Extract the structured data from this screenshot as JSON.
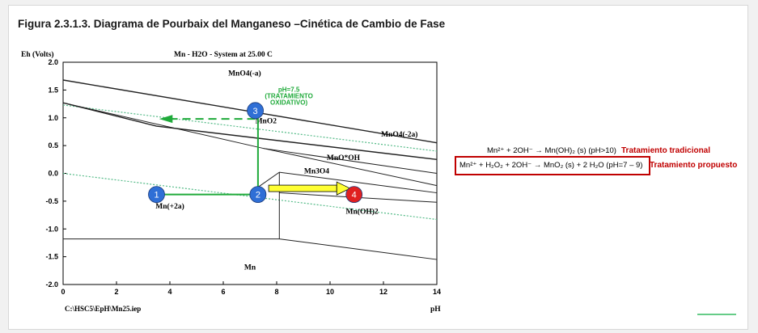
{
  "figure_title": "Figura 2.3.1.3. Diagrama de Pourbaix del Manganeso –Cinética de Cambio de Fase",
  "chart_data": {
    "type": "pourbaix",
    "title": "Mn - H2O - System at 25.00 C",
    "ylabel": "Eh (Volts)",
    "xlabel": "pH",
    "xlim": [
      0,
      14
    ],
    "ylim": [
      -2.0,
      2.0
    ],
    "x_ticks": [
      "0",
      "2",
      "4",
      "6",
      "8",
      "10",
      "12",
      "14"
    ],
    "y_ticks": [
      "2.0",
      "1.5",
      "1.0",
      "0.5",
      "0.0",
      "-0.5",
      "-1.0",
      "-1.5",
      "-2.0"
    ],
    "footer_left": "C:\\HSC5\\EpH\\Mn25.iep",
    "regions": [
      {
        "label": "MnO4(-a)",
        "x": 6.8,
        "y": 1.76
      },
      {
        "label": "MnO2",
        "x": 7.6,
        "y": 0.9
      },
      {
        "label": "MnO4(-2a)",
        "x": 12.6,
        "y": 0.66
      },
      {
        "label": "MnO*OH",
        "x": 10.5,
        "y": 0.24
      },
      {
        "label": "Mn3O4",
        "x": 9.5,
        "y": 0.0
      },
      {
        "label": "Mn(+2a)",
        "x": 4.0,
        "y": -0.63
      },
      {
        "label": "Mn(OH)2",
        "x": 11.2,
        "y": -0.73
      },
      {
        "label": "Mn",
        "x": 7.0,
        "y": -1.73
      }
    ],
    "boundaries": [
      {
        "points": [
          [
            0,
            1.68
          ],
          [
            14,
            0.55
          ]
        ]
      },
      {
        "points": [
          [
            0,
            1.27
          ],
          [
            3.5,
            0.85
          ],
          [
            14,
            0.25
          ]
        ]
      },
      {
        "points": [
          [
            0,
            1.27
          ],
          [
            7.5,
            0.45
          ],
          [
            14,
            0.0
          ]
        ]
      },
      {
        "points": [
          [
            7.5,
            0.45
          ],
          [
            14,
            -0.22
          ]
        ]
      },
      {
        "points": [
          [
            7.0,
            -0.35
          ],
          [
            8.1,
            0.02
          ],
          [
            14,
            -0.35
          ]
        ]
      },
      {
        "points": [
          [
            8.1,
            -0.35
          ],
          [
            14,
            -0.52
          ]
        ]
      },
      {
        "points": [
          [
            8.1,
            -1.18
          ],
          [
            14,
            -1.55
          ]
        ]
      },
      {
        "points": [
          [
            0,
            -1.18
          ],
          [
            8.1,
            -1.18
          ]
        ]
      },
      {
        "points": [
          [
            8.1,
            0.02
          ],
          [
            8.1,
            -1.18
          ]
        ]
      }
    ],
    "water_lines": [
      {
        "points": [
          [
            0,
            1.23
          ],
          [
            14,
            0.4
          ]
        ]
      },
      {
        "points": [
          [
            0,
            0.0
          ],
          [
            14,
            -0.83
          ]
        ]
      }
    ],
    "annotation": {
      "lines": [
        "pH=7.5",
        "(TRATAMIENTO",
        "OXIDATIVO)"
      ],
      "x": 7.7,
      "y": 1.47
    },
    "markers": [
      {
        "label": "1",
        "x": 3.5,
        "y": -0.38,
        "color": "#2f6fd6"
      },
      {
        "label": "2",
        "x": 7.3,
        "y": -0.38,
        "color": "#2f6fd6"
      },
      {
        "label": "3",
        "x": 7.2,
        "y": 1.13,
        "color": "#2f6fd6"
      },
      {
        "label": "4",
        "x": 10.9,
        "y": -0.38,
        "color": "#e02020"
      }
    ],
    "colors": {
      "green": "#1faa3a",
      "yellow": "#ffff33",
      "water": "#55bb88",
      "axis": "#000000"
    }
  },
  "equations": {
    "traditional": "Mn²⁺ + 2OH⁻ → Mn(OH)₂ (s) (pH>10)",
    "traditional_label": "Tratamiento tradicional",
    "proposed": "Mn²⁺ + H₂O₂ + 2OH⁻ → MnO₂ (s) + 2 H₂O (pH=7 – 9)",
    "proposed_label": "Tratamiento propuesto"
  }
}
